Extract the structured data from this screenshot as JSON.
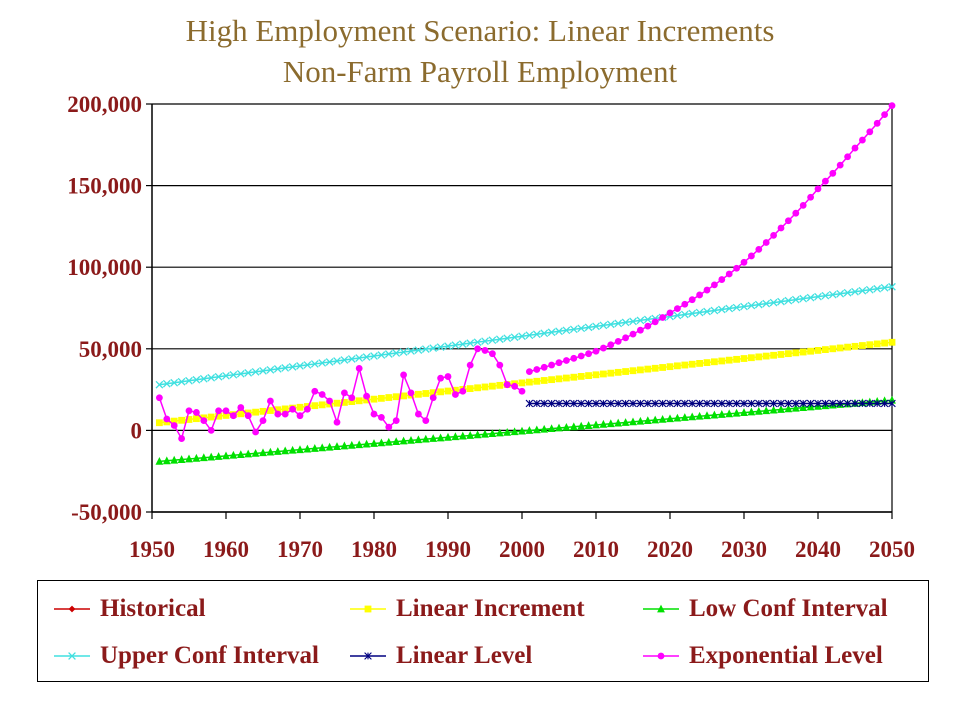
{
  "chart_data": {
    "type": "line",
    "title": "High Employment Scenario: Linear Increments",
    "subtitle": "Non-Farm Payroll Employment",
    "xlim": [
      1950,
      2050
    ],
    "ylim": [
      -50000,
      200000
    ],
    "x_ticks": [
      1950,
      1960,
      1970,
      1980,
      1990,
      2000,
      2010,
      2020,
      2030,
      2040,
      2050
    ],
    "x_tick_labels": [
      "1950",
      "1960",
      "1970",
      "1980",
      "1990",
      "2000",
      "2010",
      "2020",
      "2030",
      "2040",
      "2050"
    ],
    "y_ticks": [
      -50000,
      0,
      50000,
      100000,
      150000,
      200000
    ],
    "y_tick_labels": [
      "-50,000",
      "0",
      "50,000",
      "100,000",
      "150,000",
      "200,000"
    ],
    "grid": "horizontal",
    "legend_position": "bottom",
    "series": [
      {
        "name": "Historical",
        "color": "#CC0000",
        "marker": "diamond",
        "points": []
      },
      {
        "name": "Linear Increment",
        "color": "#FFFF00",
        "marker": "square",
        "points": [
          [
            1951,
            4700
          ],
          [
            2050,
            54000
          ]
        ]
      },
      {
        "name": "Low Conf Interval",
        "color": "#00E000",
        "marker": "triangle",
        "points": [
          [
            1951,
            -19000
          ],
          [
            2050,
            18500
          ]
        ]
      },
      {
        "name": "Upper Conf Interval",
        "color": "#40E0E0",
        "marker": "x",
        "points": [
          [
            1951,
            28000
          ],
          [
            2050,
            88000
          ]
        ]
      },
      {
        "name": "Linear Level",
        "color": "#000080",
        "marker": "star",
        "points": [
          [
            2001,
            16500
          ],
          [
            2050,
            16500
          ]
        ]
      },
      {
        "name": "Exponential Level",
        "color": "#FF00FF",
        "marker": "circle",
        "points": [
          [
            1951,
            20000
          ],
          [
            1952,
            7000
          ],
          [
            1953,
            3000
          ],
          [
            1954,
            -5000
          ],
          [
            1955,
            12000
          ],
          [
            1956,
            11000
          ],
          [
            1957,
            6000
          ],
          [
            1958,
            0
          ],
          [
            1959,
            12000
          ],
          [
            1960,
            12000
          ],
          [
            1961,
            9000
          ],
          [
            1962,
            14000
          ],
          [
            1963,
            9000
          ],
          [
            1964,
            -1000
          ],
          [
            1965,
            6000
          ],
          [
            1966,
            18000
          ],
          [
            1967,
            10000
          ],
          [
            1968,
            10000
          ],
          [
            1969,
            13000
          ],
          [
            1970,
            9000
          ],
          [
            1971,
            13000
          ],
          [
            1972,
            24000
          ],
          [
            1973,
            22000
          ],
          [
            1974,
            18000
          ],
          [
            1975,
            5000
          ],
          [
            1976,
            23000
          ],
          [
            1977,
            20000
          ],
          [
            1978,
            38000
          ],
          [
            1979,
            21000
          ],
          [
            1980,
            10000
          ],
          [
            1981,
            8000
          ],
          [
            1982,
            2000
          ],
          [
            1983,
            6000
          ],
          [
            1984,
            34000
          ],
          [
            1985,
            23000
          ],
          [
            1986,
            10000
          ],
          [
            1987,
            6000
          ],
          [
            1988,
            20000
          ],
          [
            1989,
            32000
          ],
          [
            1990,
            33000
          ],
          [
            1991,
            22000
          ],
          [
            1992,
            24000
          ],
          [
            1993,
            40000
          ],
          [
            1994,
            50000
          ],
          [
            1995,
            49000
          ],
          [
            1996,
            47000
          ],
          [
            1997,
            40000
          ],
          [
            1998,
            28000
          ],
          [
            1999,
            27000
          ],
          [
            2000,
            24000
          ],
          [
            2001,
            36000
          ],
          [
            2005,
            41500
          ],
          [
            2010,
            48500
          ],
          [
            2015,
            59000
          ],
          [
            2020,
            72000
          ],
          [
            2025,
            86000
          ],
          [
            2030,
            103000
          ],
          [
            2035,
            124000
          ],
          [
            2040,
            148000
          ],
          [
            2045,
            173000
          ],
          [
            2050,
            199000
          ]
        ]
      }
    ]
  }
}
